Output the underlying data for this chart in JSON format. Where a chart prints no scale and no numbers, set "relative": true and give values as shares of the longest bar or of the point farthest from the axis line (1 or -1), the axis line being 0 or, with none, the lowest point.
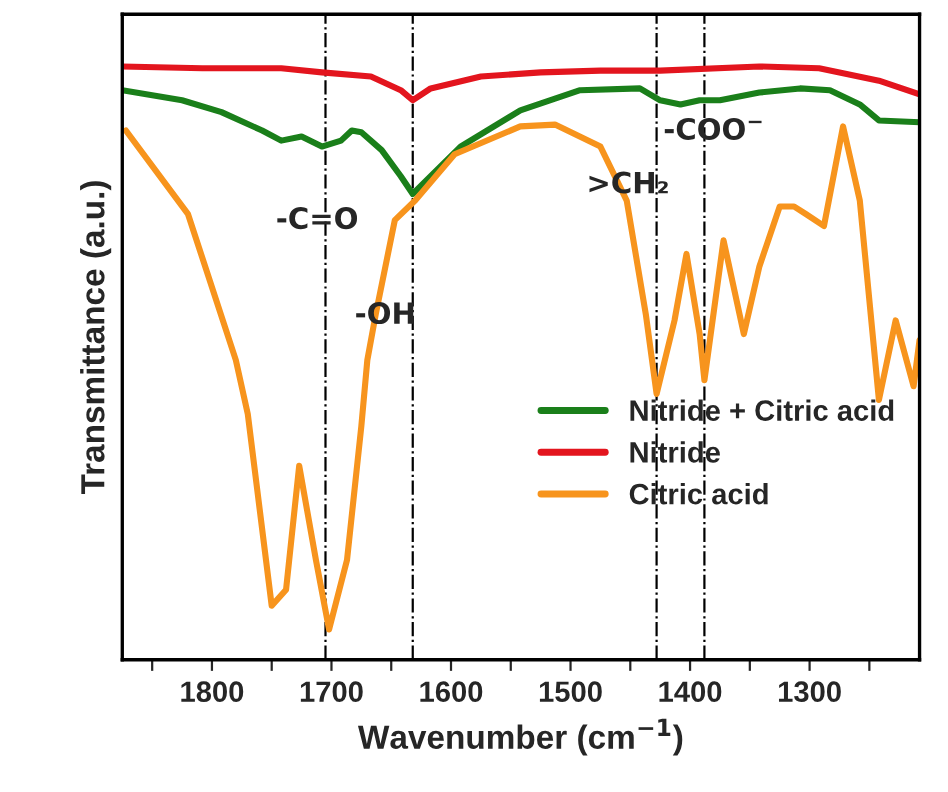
{
  "chart_data": {
    "type": "line",
    "relative": true,
    "xlabel": "Wavenumber (cm$^{−1}$)",
    "ylabel": "Transmittance (a.u.)",
    "xlim": [
      1875,
      1208
    ],
    "xticks": [
      {
        "value": 1850,
        "label": null
      },
      1800,
      {
        "value": 1750,
        "label": null
      },
      1700,
      {
        "value": 1650,
        "label": null
      },
      1600,
      {
        "value": 1550,
        "label": null
      },
      1500,
      {
        "value": 1450,
        "label": null
      },
      1400,
      {
        "value": 1350,
        "label": null
      },
      1300,
      {
        "value": 1250,
        "label": null
      }
    ],
    "tick_labels": "x",
    "grid": false,
    "legend": "lower right",
    "series": [
      {
        "name": "Nitride + Citric acid",
        "color": "#1a7f1a",
        "x": [
          1875,
          1825,
          1792,
          1758,
          1742,
          1725,
          1708,
          1692,
          1683,
          1675,
          1658,
          1642,
          1632,
          1617,
          1592,
          1542,
          1492,
          1442,
          1425,
          1408,
          1392,
          1375,
          1342,
          1308,
          1283,
          1258,
          1242,
          1208
        ],
        "values": [
          0.96,
          0.943,
          0.923,
          0.892,
          0.875,
          0.882,
          0.865,
          0.875,
          0.892,
          0.889,
          0.859,
          0.815,
          0.785,
          0.815,
          0.865,
          0.926,
          0.96,
          0.963,
          0.943,
          0.936,
          0.943,
          0.943,
          0.956,
          0.963,
          0.96,
          0.936,
          0.909,
          0.906
        ]
      },
      {
        "name": "Nitride",
        "color": "#e3151e",
        "x": [
          1875,
          1808,
          1742,
          1708,
          1667,
          1642,
          1632,
          1617,
          1575,
          1525,
          1475,
          1425,
          1342,
          1292,
          1275,
          1242,
          1208
        ],
        "values": [
          1.0,
          0.997,
          0.997,
          0.99,
          0.983,
          0.96,
          0.943,
          0.963,
          0.983,
          0.99,
          0.993,
          0.993,
          1.0,
          0.997,
          0.99,
          0.976,
          0.953
        ]
      },
      {
        "name": "Citric acid",
        "color": "#f7941d",
        "x": [
          1872,
          1820,
          1780,
          1770,
          1750,
          1738,
          1727,
          1713,
          1702,
          1687,
          1675,
          1670,
          1663,
          1647,
          1630,
          1597,
          1542,
          1513,
          1475,
          1453,
          1437,
          1428,
          1413,
          1403,
          1392,
          1388,
          1372,
          1355,
          1342,
          1325,
          1313,
          1303,
          1288,
          1272,
          1258,
          1242,
          1228,
          1213,
          1208
        ],
        "values": [
          0.892,
          0.751,
          0.505,
          0.414,
          0.091,
          0.118,
          0.327,
          0.168,
          0.051,
          0.168,
          0.394,
          0.505,
          0.582,
          0.741,
          0.774,
          0.852,
          0.899,
          0.902,
          0.865,
          0.774,
          0.582,
          0.448,
          0.572,
          0.684,
          0.549,
          0.471,
          0.707,
          0.549,
          0.663,
          0.764,
          0.764,
          0.751,
          0.731,
          0.899,
          0.774,
          0.438,
          0.572,
          0.461,
          0.539
        ]
      }
    ],
    "ref_lines": [
      {
        "axis": "x",
        "value": 1705,
        "color": "#000000",
        "line_style": "dashdot"
      },
      {
        "axis": "x",
        "value": 1632,
        "color": "#000000",
        "line_style": "dashdot"
      },
      {
        "axis": "x",
        "value": 1428,
        "color": "#000000",
        "line_style": "dashdot"
      },
      {
        "axis": "x",
        "value": 1388,
        "color": "#000000",
        "line_style": "dashdot"
      }
    ],
    "annotations": [
      {
        "text": "-C=O",
        "x": 1712,
        "y": 0.74
      },
      {
        "text": "-OH",
        "x": 1655,
        "y": 0.58
      },
      {
        "text": ">CH₂",
        "x": 1452,
        "y": 0.8
      },
      {
        "text": "-COO$^{−}$",
        "x": 1380,
        "y": 0.89
      }
    ]
  }
}
